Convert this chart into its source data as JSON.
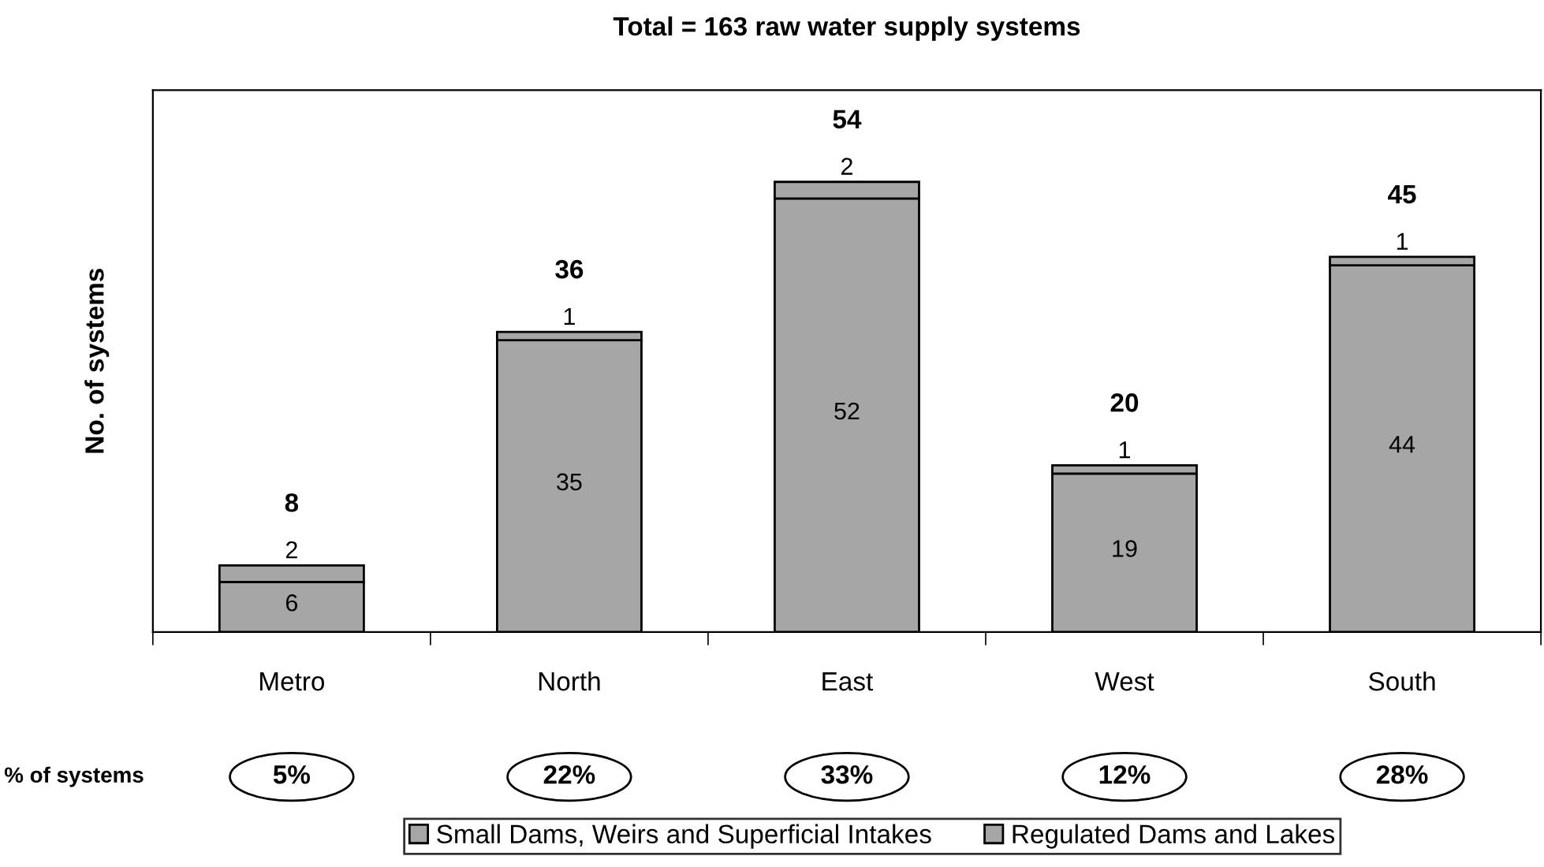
{
  "chart_data": {
    "type": "bar",
    "title": "Total = 163 raw water supply systems",
    "ylabel": "No. of systems",
    "categories": [
      "Metro",
      "North",
      "East",
      "West",
      "South"
    ],
    "series": [
      {
        "name": "Small Dams, Weirs and Superficial Intakes",
        "color": "#a6a6a6",
        "values": [
          6,
          35,
          52,
          19,
          44
        ]
      },
      {
        "name": "Regulated Dams and Lakes",
        "color": "#a6a6a6",
        "values": [
          2,
          1,
          2,
          1,
          1
        ]
      }
    ],
    "stacked": true,
    "data_labels": true,
    "totals": [
      "8",
      "36",
      "54",
      "20",
      "45"
    ],
    "ylim": [
      0,
      65
    ],
    "tick_labels": "x",
    "grid": false,
    "legend": "bottom",
    "annotations": [
      "% of systems",
      "5%",
      "22%",
      "33%",
      "12%",
      "28%"
    ]
  }
}
